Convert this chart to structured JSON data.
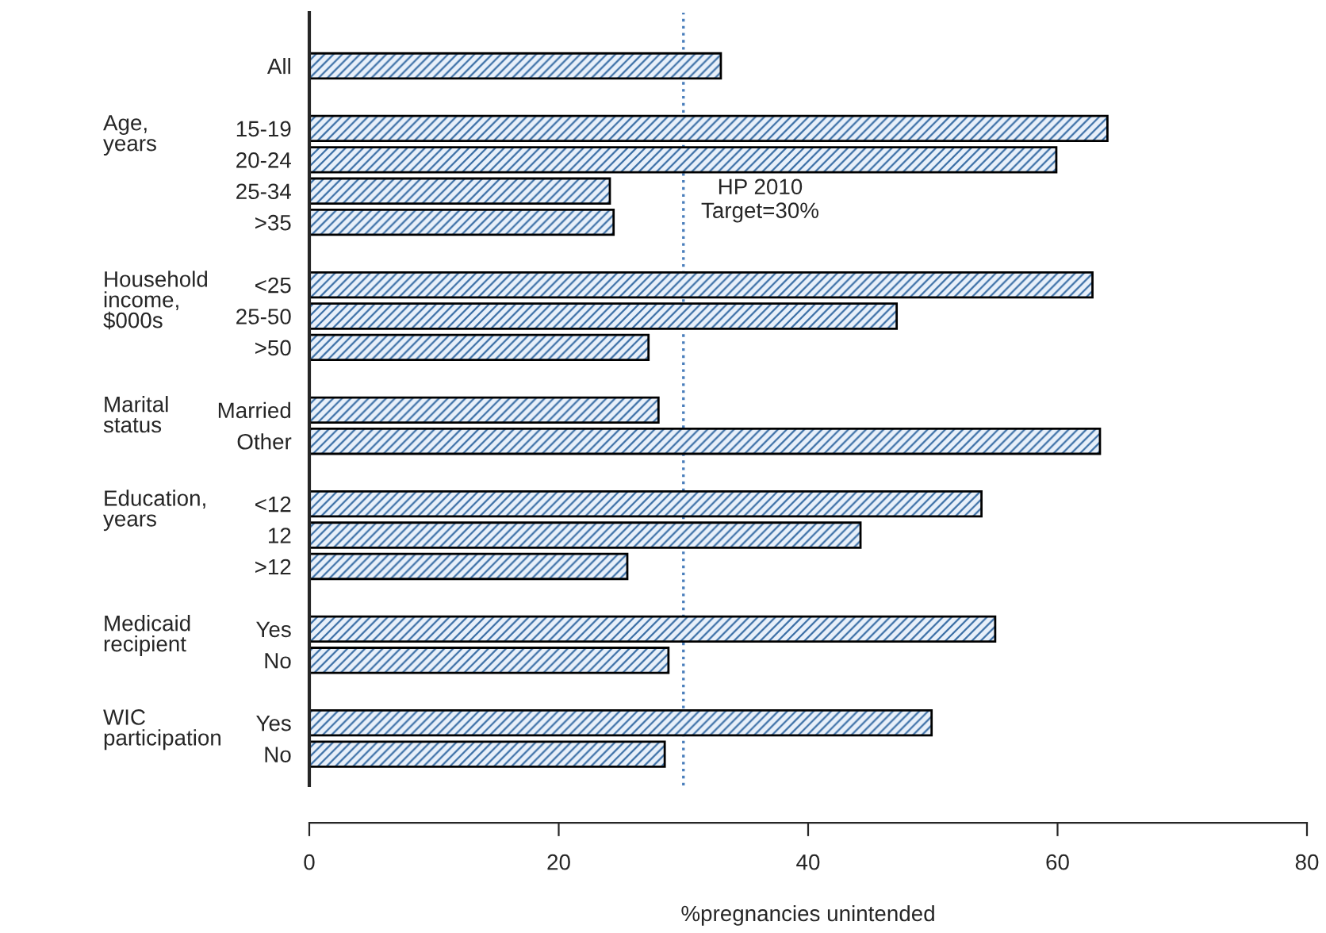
{
  "chart_data": {
    "type": "bar",
    "orientation": "horizontal",
    "xlabel": "%pregnancies unintended",
    "categories": [
      "All",
      null,
      "15-19",
      "20-24",
      "25-34",
      ">35",
      null,
      "<25",
      "25-50",
      ">50",
      null,
      "Married",
      "Other",
      null,
      "<12",
      "12",
      ">12",
      null,
      "Yes",
      "No",
      null,
      "Yes",
      "No"
    ],
    "values": [
      33.0,
      null,
      64.0,
      59.9,
      24.1,
      24.4,
      null,
      62.8,
      47.1,
      27.2,
      null,
      28.0,
      63.4,
      null,
      53.9,
      44.2,
      25.5,
      null,
      55.0,
      28.8,
      null,
      49.9,
      28.5
    ],
    "color": "#3a6ea5",
    "xlim": [
      0,
      80
    ],
    "xticks": [
      0,
      20,
      40,
      60,
      80
    ],
    "grid": false,
    "legend": false,
    "ref_lines": [
      {
        "axis": "x",
        "value": 30,
        "label": "HP 2010\nTarget=30%",
        "color": "#4a7ebb",
        "line_style": "dotted"
      }
    ],
    "annotations": [
      "Age,\nyears",
      "Household\nincome,\n$000s",
      "Marital\nstatus",
      "Education,\nyears",
      "Medicaid\nrecipient",
      "WIC\nparticipation"
    ]
  }
}
